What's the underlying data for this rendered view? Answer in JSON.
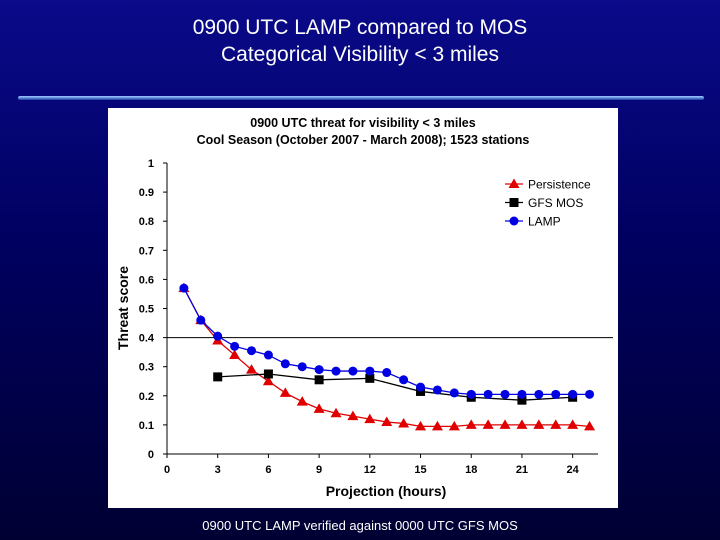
{
  "slide": {
    "title_line1": "0900 UTC LAMP compared to MOS",
    "title_line2": "Categorical Visibility < 3 miles",
    "footnote": "0900 UTC LAMP verified against 0000 UTC GFS MOS"
  },
  "chart_data": {
    "type": "line",
    "title_line1": "0900 UTC threat for visibility < 3 miles",
    "title_line2": "Cool Season  (October 2007 - March 2008); 1523 stations",
    "xlabel": "Projection (hours)",
    "ylabel": "Threat score",
    "xlim": [
      0,
      25.5
    ],
    "ylim": [
      0,
      1
    ],
    "xticks": [
      0,
      3,
      6,
      9,
      12,
      15,
      18,
      21,
      24
    ],
    "xtick_labels": [
      "0",
      "3",
      "6",
      "9",
      "12",
      "15",
      "18",
      "21",
      "24"
    ],
    "yticks": [
      0,
      0.1,
      0.2,
      0.3,
      0.4,
      0.5,
      0.6,
      0.7,
      0.8,
      0.9,
      1
    ],
    "ytick_labels": [
      "0",
      "0.1",
      "0.2",
      "0.3",
      "0.4",
      "0.5",
      "0.6",
      "0.7",
      "0.8",
      "0.9",
      "1"
    ],
    "reference_line": 0.4,
    "legend_position": "top-right",
    "series": [
      {
        "name": "Persistence",
        "color": "#e00000",
        "marker": "triangle",
        "x": [
          1,
          2,
          3,
          4,
          5,
          6,
          7,
          8,
          9,
          10,
          11,
          12,
          13,
          14,
          15,
          16,
          17,
          18,
          19,
          20,
          21,
          22,
          23,
          24,
          25
        ],
        "values": [
          0.57,
          0.46,
          0.39,
          0.34,
          0.29,
          0.25,
          0.21,
          0.18,
          0.155,
          0.14,
          0.13,
          0.12,
          0.11,
          0.105,
          0.095,
          0.095,
          0.095,
          0.1,
          0.1,
          0.1,
          0.1,
          0.1,
          0.1,
          0.1,
          0.095
        ]
      },
      {
        "name": "GFS MOS",
        "color": "#000000",
        "marker": "square",
        "x": [
          3,
          6,
          9,
          12,
          15,
          18,
          21,
          24
        ],
        "values": [
          0.265,
          0.275,
          0.255,
          0.26,
          0.215,
          0.195,
          0.185,
          0.195
        ]
      },
      {
        "name": "LAMP",
        "color": "#0000e0",
        "marker": "circle",
        "x": [
          1,
          2,
          3,
          4,
          5,
          6,
          7,
          8,
          9,
          10,
          11,
          12,
          13,
          14,
          15,
          16,
          17,
          18,
          19,
          20,
          21,
          22,
          23,
          24,
          25
        ],
        "values": [
          0.57,
          0.46,
          0.405,
          0.37,
          0.355,
          0.34,
          0.31,
          0.3,
          0.29,
          0.285,
          0.285,
          0.285,
          0.28,
          0.255,
          0.23,
          0.22,
          0.21,
          0.205,
          0.205,
          0.205,
          0.205,
          0.205,
          0.205,
          0.205,
          0.205
        ]
      }
    ]
  }
}
